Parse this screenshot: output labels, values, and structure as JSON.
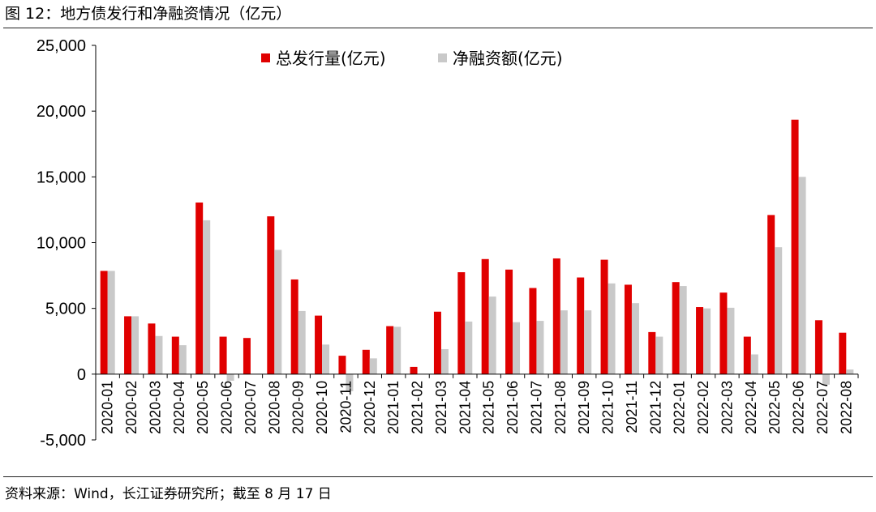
{
  "figure": {
    "title": "图 12：地方债发行和净融资情况（亿元）",
    "source": "资料来源：Wind，长江证券研究所；截至 8 月 17 日"
  },
  "colors": {
    "series_1": "#e00000",
    "series_2": "#c9c9c9",
    "axis": "#000000"
  },
  "chart_data": {
    "type": "bar",
    "categories": [
      "2020-01",
      "2020-02",
      "2020-03",
      "2020-04",
      "2020-05",
      "2020-06",
      "2020-07",
      "2020-08",
      "2020-09",
      "2020-10",
      "2020-11",
      "2020-12",
      "2021-01",
      "2021-02",
      "2021-03",
      "2021-04",
      "2021-05",
      "2021-06",
      "2021-07",
      "2021-08",
      "2021-09",
      "2021-10",
      "2021-11",
      "2021-12",
      "2022-01",
      "2022-02",
      "2022-03",
      "2022-04",
      "2022-05",
      "2022-06",
      "2022-07",
      "2022-08"
    ],
    "series": [
      {
        "name": "总发行量(亿元)",
        "values": [
          7850,
          4400,
          3850,
          2850,
          13050,
          2850,
          2750,
          12000,
          7200,
          4450,
          1400,
          1850,
          3650,
          550,
          4750,
          7750,
          8750,
          7950,
          6550,
          8800,
          7350,
          8700,
          6800,
          3200,
          7000,
          5100,
          6200,
          2850,
          12100,
          19350,
          4100,
          3150
        ]
      },
      {
        "name": "净融资额(亿元)",
        "values": [
          7850,
          4400,
          2900,
          2200,
          11700,
          -500,
          0,
          9450,
          4800,
          2250,
          -1300,
          1200,
          3600,
          0,
          1900,
          4000,
          5900,
          3950,
          4050,
          4850,
          4850,
          6900,
          5400,
          2850,
          6700,
          5000,
          5050,
          1500,
          9650,
          15000,
          -800,
          350
        ]
      }
    ],
    "ylim": [
      -5000,
      25000
    ],
    "yticks": [
      -5000,
      0,
      5000,
      10000,
      15000,
      20000,
      25000
    ],
    "ytick_labels": [
      "-5,000",
      "0",
      "5,000",
      "10,000",
      "15,000",
      "20,000",
      "25,000"
    ],
    "grid": false,
    "legend_position": "top-center"
  }
}
